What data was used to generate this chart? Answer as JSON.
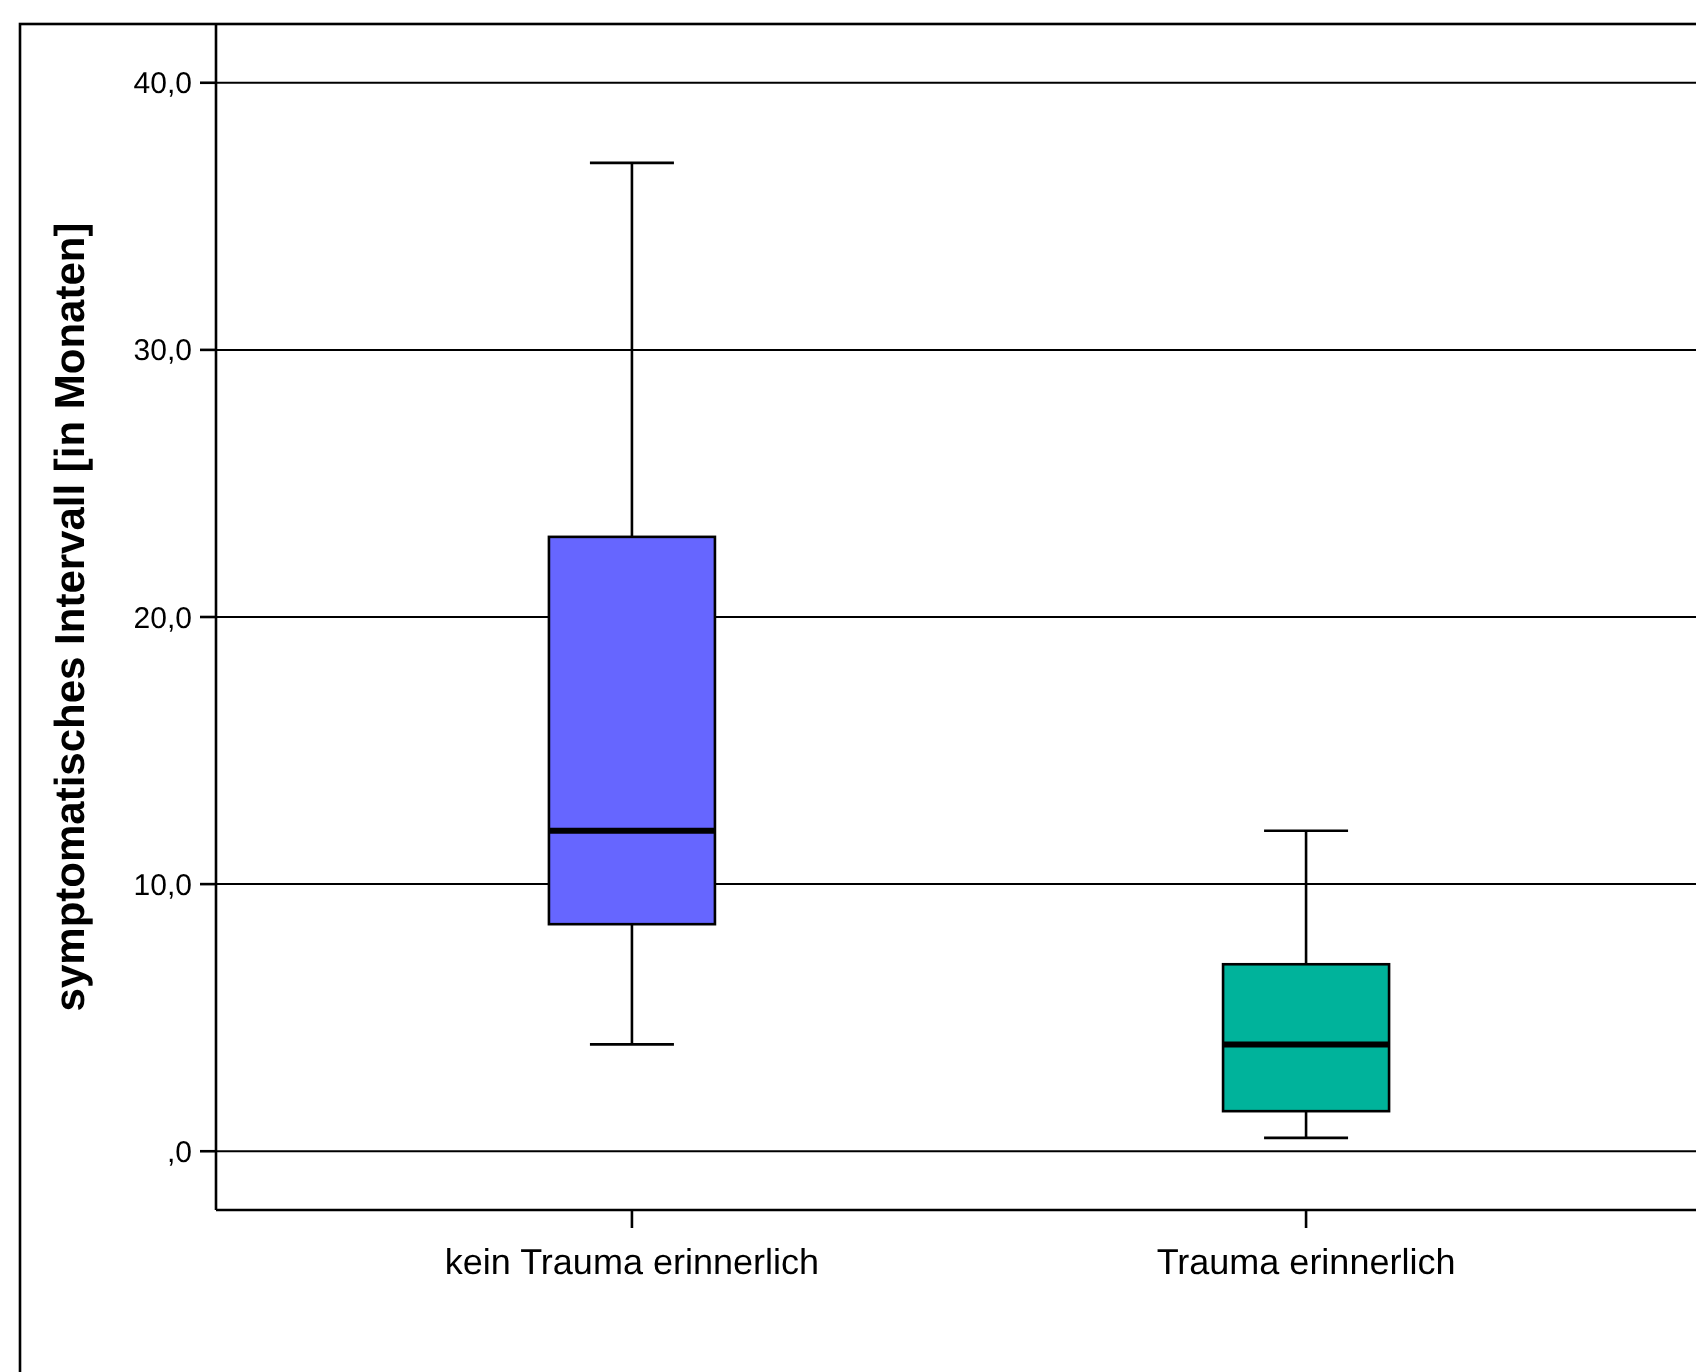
{
  "chart_data": {
    "type": "box",
    "ylabel": "symptomatisches Intervall [in Monaten]",
    "categories": [
      "kein Trauma erinnerlich",
      "Trauma erinnerlich"
    ],
    "boxes": [
      {
        "low": 4,
        "q1": 8.5,
        "median": 12,
        "q3": 23,
        "high": 37
      },
      {
        "low": 0.5,
        "q1": 1.5,
        "median": 4,
        "q3": 7,
        "high": 12
      }
    ],
    "colors": [
      "#6666ff",
      "#00b39b"
    ],
    "ylim": [
      -2.2,
      42.2
    ],
    "yticks": [
      {
        "value": 0,
        "label": ",0"
      },
      {
        "value": 10,
        "label": "10,0"
      },
      {
        "value": 20,
        "label": "20,0"
      },
      {
        "value": 30,
        "label": "30,0"
      },
      {
        "value": 40,
        "label": "40,0"
      }
    ],
    "grid": "y"
  }
}
